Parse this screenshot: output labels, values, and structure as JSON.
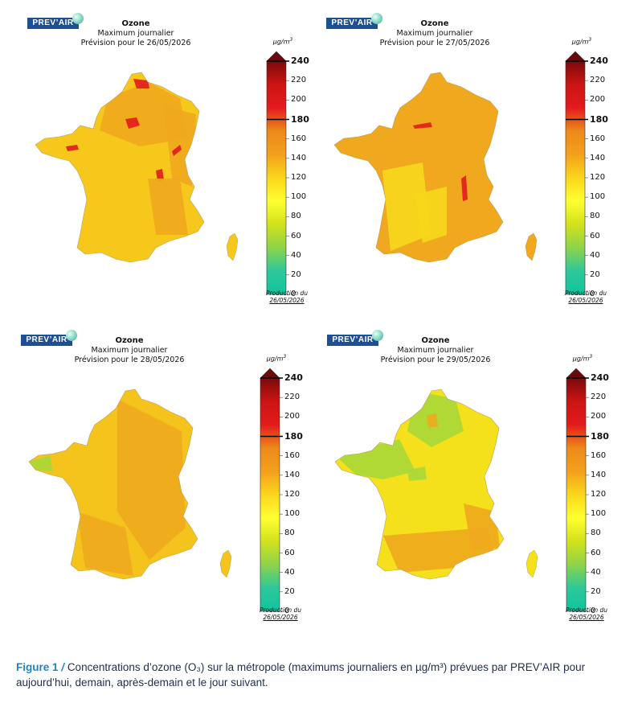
{
  "logo_text": "PREV’AIR",
  "panels": [
    {
      "title": "Ozone",
      "subtitle": "Maximum journalier",
      "forecast": "Prévision pour le 26/05/2026",
      "base_color": "#f6c81c",
      "regions": [
        {
          "color": "#f0a81e",
          "note": "north"
        },
        {
          "color": "#f0a81e",
          "note": "east"
        },
        {
          "color": "#e31a1c",
          "note": "hotspot-north"
        },
        {
          "color": "#e31a1c",
          "note": "hotspot-paris"
        },
        {
          "color": "#e31a1c",
          "note": "hotspot-brittany"
        },
        {
          "color": "#e31a1c",
          "note": "hotspot-center"
        },
        {
          "color": "#e31a1c",
          "note": "hotspot-east"
        },
        {
          "color": "#f0a81e",
          "note": "rhone"
        }
      ]
    },
    {
      "title": "Ozone",
      "subtitle": "Maximum journalier",
      "forecast": "Prévision pour le 27/05/2026",
      "base_color": "#f0a81e",
      "regions": [
        {
          "color": "#f6d81c",
          "note": "west"
        },
        {
          "color": "#f6d81c",
          "note": "massif"
        },
        {
          "color": "#e31a1c",
          "note": "hotspot-paris"
        },
        {
          "color": "#e31a1c",
          "note": "hotspot-rhone"
        }
      ]
    },
    {
      "title": "Ozone",
      "subtitle": "Maximum journalier",
      "forecast": "Prévision pour le 28/05/2026",
      "base_color": "#f4c41c",
      "regions": [
        {
          "color": "#eeaa1e",
          "note": "center"
        },
        {
          "color": "#eeaa1e",
          "note": "southwest"
        },
        {
          "color": "#a8d83a",
          "note": "brittany-tip"
        }
      ]
    },
    {
      "title": "Ozone",
      "subtitle": "Maximum journalier",
      "forecast": "Prévision pour le 29/05/2026",
      "base_color": "#f5e01c",
      "regions": [
        {
          "color": "#a8d83a",
          "note": "northwest"
        },
        {
          "color": "#a8d83a",
          "note": "north"
        },
        {
          "color": "#eeaa1e",
          "note": "south"
        },
        {
          "color": "#eeaa1e",
          "note": "southeast"
        },
        {
          "color": "#eeaa1e",
          "note": "center-spot"
        },
        {
          "color": "#a8d83a",
          "note": "west-spot"
        }
      ]
    }
  ],
  "colorbar": {
    "unit": "µg/m",
    "unit_sup": "3",
    "ticks": [
      "240",
      "220",
      "200",
      "180",
      "160",
      "140",
      "120",
      "100",
      "80",
      "60",
      "40",
      "20",
      "0"
    ],
    "bold_ticks": [
      "240",
      "180"
    ],
    "production_label": "Production du",
    "production_date": "26/05/2026",
    "colors": [
      "#0fc49e",
      "#2ec89a",
      "#8ed34a",
      "#d2e21c",
      "#ffff30",
      "#fbd61c",
      "#f3a01c",
      "#ec8a1a",
      "#e31a1c",
      "#cc1414",
      "#7a0b0b"
    ]
  },
  "caption": {
    "figure": "Figure 1",
    "separator": "/",
    "text": "Concentrations d’ozone (O₃) sur la métropole (maximums journaliers en µg/m³) prévues par PREV’AIR pour aujourd’hui, demain, après-demain et le jour suivant."
  }
}
